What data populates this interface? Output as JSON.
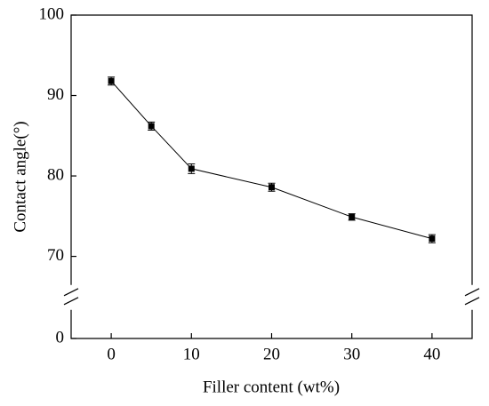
{
  "chart_data": {
    "type": "line",
    "x_label": "Filler content (wt%)",
    "y_label": "Contact angle(°)",
    "x": [
      0,
      5,
      10,
      20,
      30,
      40
    ],
    "series": [
      {
        "values": [
          91.8,
          86.2,
          80.9,
          78.6,
          74.9,
          72.2
        ],
        "errors": [
          0.5,
          0.5,
          0.6,
          0.5,
          0.4,
          0.5
        ],
        "color": "#000000"
      }
    ],
    "xlim": [
      -5,
      45
    ],
    "xticks": [
      0,
      10,
      20,
      30,
      40
    ],
    "ylim": [
      0,
      100
    ],
    "ybreak": [
      4,
      66
    ],
    "yticks": [
      0,
      70,
      80,
      90,
      100
    ]
  }
}
